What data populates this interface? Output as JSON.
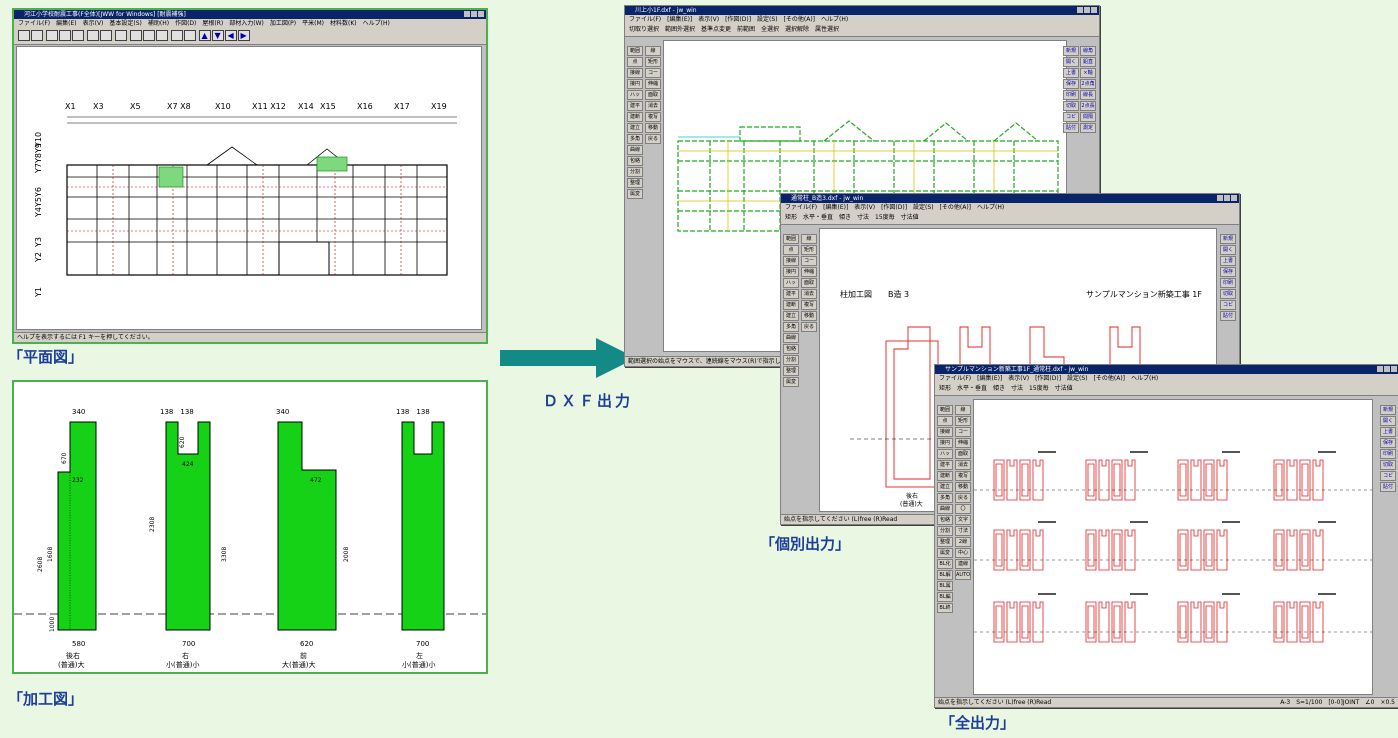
{
  "plan_window": {
    "title": "河江小学校耐震工事(F全体)[JWW for Windows] [耐震補強]",
    "menu": "ファイル(F)　編集(E)　表示(V)　基本設定(S)　補助(H)　作図(D)　屋根(R)　部材入力(W)　加工図(P)　平米(M)　材料数(K)　ヘルプ(H)",
    "status": "ヘルプを表示するには F1 キーを押してください。",
    "grid_x": [
      "X1",
      "X3",
      "X5",
      "X7 X8",
      "X10",
      "X11 X12",
      "X14",
      "X15",
      "X16",
      "X17",
      "X19"
    ],
    "grid_y": [
      "Y10",
      "Y7Y8Y9",
      "Y4Y5Y6",
      "Y3",
      "Y2",
      "Y1"
    ]
  },
  "captions": {
    "plan": "「平面図」",
    "processing": "「加工図」",
    "dxf": "ＤＸＦ出力",
    "individual": "「個別出力」",
    "all": "「全出力」"
  },
  "processing_panel": {
    "columns": [
      {
        "top": "340",
        "bottom": "580",
        "label1": "後右",
        "label2": "(普通)大"
      },
      {
        "top": "138　138",
        "bottom": "700",
        "label1": "右",
        "label2": "小(普通)小"
      },
      {
        "top": "340",
        "bottom": "620",
        "label1": "前",
        "label2": "大(普通)大"
      },
      {
        "top": "138　138",
        "bottom": "700",
        "label1": "左",
        "label2": "小(普通)小"
      }
    ],
    "dims": [
      "670",
      "232",
      "1608",
      "2608",
      "1000",
      "620",
      "424",
      "2308",
      "3308",
      "472",
      "2008"
    ]
  },
  "jw_window1": {
    "title": "川上小1F.dxf - jw_win",
    "menu": "ファイル(F)　[編集(E)]　表示(V)　[作図(D)]　設定(S)　[その他(A)]　ヘルプ(H)",
    "toolbar": "切取り選択　範囲外選択　基準点変更　前範囲　全選択　選択解除　属性選択",
    "status": "範囲選択の始点をマウスで、連続線をマウス(R)で指示してください"
  },
  "jw_window2": {
    "title": "通常柱_B造3.dxf - jw_win",
    "menu": "ファイル(F)　[編集(E)]　表示(V)　[作図(D)]　設定(S)　[その他(A)]　ヘルプ(H)",
    "toolbar": "矩形　水平・垂直　傾き　寸法　15度毎　寸法値",
    "left_title": "柱加工図　　B造 3",
    "right_title": "サンプルマンション新築工事 1F",
    "status": "始点を指示してください (L)free (R)Read",
    "label1": "後右",
    "label2": "(普通)大"
  },
  "jw_window3": {
    "title": "サンプルマンション新築工事1F_通常柱.dxf - jw_win",
    "menu": "ファイル(F)　[編集(E)]　表示(V)　[作図(D)]　設定(S)　[その他(A)]　ヘルプ(H)",
    "toolbar": "矩形　水平・垂直　傾き　寸法　15度毎　寸法値",
    "status": "始点を指示してください (L)free (R)Read",
    "status_right": "A-3　S=1/100　[0-0]JOINT　∠0　×0.5"
  },
  "jw_tools_left": [
    "範囲",
    "点",
    "接線",
    "接円",
    "ハッチ",
    "建平",
    "建断",
    "建立",
    "多角",
    "曲線",
    "包絡",
    "分割",
    "整理",
    "属変",
    "BL化",
    "BL解",
    "BL属",
    "BL編",
    "BL終"
  ],
  "jw_tools_mid": [
    "線",
    "矩形",
    "コーナー",
    "伸縮",
    "面取",
    "消去",
    "複写",
    "移動",
    "戻る",
    "〇",
    "文字",
    "寸法",
    "2線",
    "中心線",
    "連線",
    "AUTO"
  ],
  "jw_tools_right": [
    "新規",
    "開く",
    "上書",
    "保存",
    "印刷",
    "切取",
    "コピー",
    "貼付",
    "線角",
    "鉛直",
    "×軸",
    "2点角",
    "線長",
    "2点長",
    "間隔",
    "測定",
    "表計",
    "距離",
    "式計"
  ]
}
